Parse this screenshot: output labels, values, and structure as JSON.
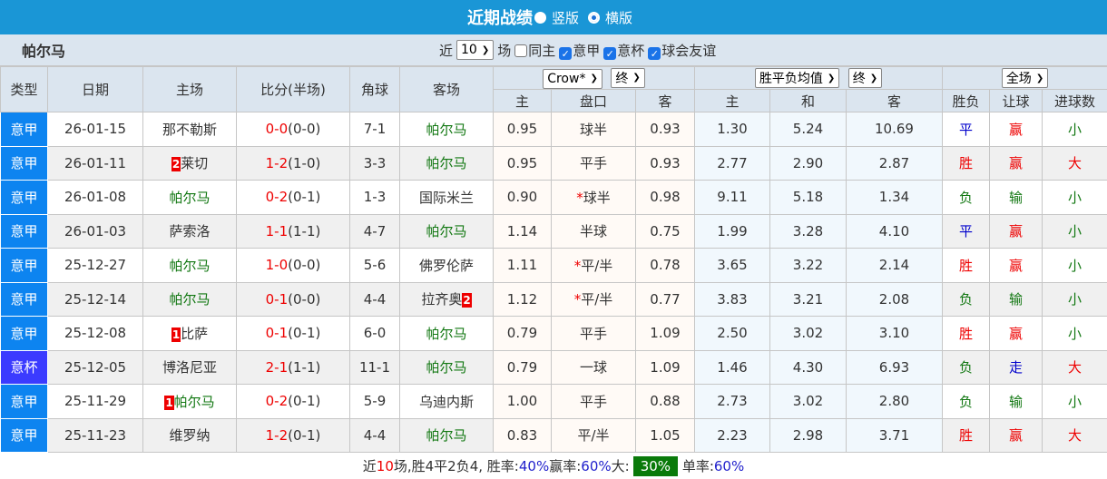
{
  "header": {
    "title": "近期战绩",
    "options": [
      {
        "label": "竖版",
        "selected": true
      },
      {
        "label": "横版",
        "selected": false
      }
    ]
  },
  "team": "帕尔马",
  "filters": {
    "prefix": "近",
    "count": "10",
    "suffix": "场",
    "checkboxes": [
      {
        "label": "同主",
        "checked": false
      },
      {
        "label": "意甲",
        "checked": true
      },
      {
        "label": "意杯",
        "checked": true
      },
      {
        "label": "球会友谊",
        "checked": true
      }
    ]
  },
  "columns": {
    "type": "类型",
    "date": "日期",
    "home": "主场",
    "score": "比分(半场)",
    "corner": "角球",
    "away": "客场",
    "result": "胜负",
    "handicap": "让球",
    "goals": "进球数"
  },
  "selects": {
    "company": "Crow*",
    "company_time": "终",
    "odds_type": "胜平负均值",
    "odds_time": "终",
    "period": "全场"
  },
  "sub": {
    "ah_home": "主",
    "ah_line": "盘口",
    "ah_away": "客",
    "eu_home": "主",
    "eu_draw": "和",
    "eu_away": "客"
  },
  "colors": {
    "accent": "#1a96d6",
    "league": "#0d84f0",
    "cup": "#3b3bff",
    "highlight_team": "#117711",
    "win": "#e00",
    "lose": "#117711",
    "draw": "#0000cc"
  },
  "rows": [
    {
      "type": "意甲",
      "date": "26-01-15",
      "home": "那不勒斯",
      "home_rank": "",
      "score": "0-0",
      "half": "(0-0)",
      "corner": "7-1",
      "away": "帕尔马",
      "away_rank": "",
      "ah": [
        "0.95",
        "球半",
        "0.93"
      ],
      "ah_star": false,
      "eu": [
        "1.30",
        "5.24",
        "10.69"
      ],
      "res": "平",
      "hc": "赢",
      "goals": "小"
    },
    {
      "type": "意甲",
      "date": "26-01-11",
      "home": "莱切",
      "home_rank": "2",
      "score": "1-2",
      "half": "(1-0)",
      "corner": "3-3",
      "away": "帕尔马",
      "away_rank": "",
      "ah": [
        "0.95",
        "平手",
        "0.93"
      ],
      "ah_star": false,
      "eu": [
        "2.77",
        "2.90",
        "2.87"
      ],
      "res": "胜",
      "hc": "赢",
      "goals": "大"
    },
    {
      "type": "意甲",
      "date": "26-01-08",
      "home": "帕尔马",
      "home_rank": "",
      "score": "0-2",
      "half": "(0-1)",
      "corner": "1-3",
      "away": "国际米兰",
      "away_rank": "",
      "ah": [
        "0.90",
        "球半",
        "0.98"
      ],
      "ah_star": true,
      "eu": [
        "9.11",
        "5.18",
        "1.34"
      ],
      "res": "负",
      "hc": "输",
      "goals": "小"
    },
    {
      "type": "意甲",
      "date": "26-01-03",
      "home": "萨索洛",
      "home_rank": "",
      "score": "1-1",
      "half": "(1-1)",
      "corner": "4-7",
      "away": "帕尔马",
      "away_rank": "",
      "ah": [
        "1.14",
        "半球",
        "0.75"
      ],
      "ah_star": false,
      "eu": [
        "1.99",
        "3.28",
        "4.10"
      ],
      "res": "平",
      "hc": "赢",
      "goals": "小"
    },
    {
      "type": "意甲",
      "date": "25-12-27",
      "home": "帕尔马",
      "home_rank": "",
      "score": "1-0",
      "half": "(0-0)",
      "corner": "5-6",
      "away": "佛罗伦萨",
      "away_rank": "",
      "ah": [
        "1.11",
        "平/半",
        "0.78"
      ],
      "ah_star": true,
      "eu": [
        "3.65",
        "3.22",
        "2.14"
      ],
      "res": "胜",
      "hc": "赢",
      "goals": "小"
    },
    {
      "type": "意甲",
      "date": "25-12-14",
      "home": "帕尔马",
      "home_rank": "",
      "score": "0-1",
      "half": "(0-0)",
      "corner": "4-4",
      "away": "拉齐奥",
      "away_rank": "2",
      "ah": [
        "1.12",
        "平/半",
        "0.77"
      ],
      "ah_star": true,
      "eu": [
        "3.83",
        "3.21",
        "2.08"
      ],
      "res": "负",
      "hc": "输",
      "goals": "小"
    },
    {
      "type": "意甲",
      "date": "25-12-08",
      "home": "比萨",
      "home_rank": "1",
      "score": "0-1",
      "half": "(0-1)",
      "corner": "6-0",
      "away": "帕尔马",
      "away_rank": "",
      "ah": [
        "0.79",
        "平手",
        "1.09"
      ],
      "ah_star": false,
      "eu": [
        "2.50",
        "3.02",
        "3.10"
      ],
      "res": "胜",
      "hc": "赢",
      "goals": "小"
    },
    {
      "type": "意杯",
      "date": "25-12-05",
      "home": "博洛尼亚",
      "home_rank": "",
      "score": "2-1",
      "half": "(1-1)",
      "corner": "11-1",
      "away": "帕尔马",
      "away_rank": "",
      "ah": [
        "0.79",
        "一球",
        "1.09"
      ],
      "ah_star": false,
      "eu": [
        "1.46",
        "4.30",
        "6.93"
      ],
      "res": "负",
      "hc": "走",
      "goals": "大"
    },
    {
      "type": "意甲",
      "date": "25-11-29",
      "home": "帕尔马",
      "home_rank": "1",
      "score": "0-2",
      "half": "(0-1)",
      "corner": "5-9",
      "away": "乌迪内斯",
      "away_rank": "",
      "ah": [
        "1.00",
        "平手",
        "0.88"
      ],
      "ah_star": false,
      "eu": [
        "2.73",
        "3.02",
        "2.80"
      ],
      "res": "负",
      "hc": "输",
      "goals": "小"
    },
    {
      "type": "意甲",
      "date": "25-11-23",
      "home": "维罗纳",
      "home_rank": "",
      "score": "1-2",
      "half": "(0-1)",
      "corner": "4-4",
      "away": "帕尔马",
      "away_rank": "",
      "ah": [
        "0.83",
        "平/半",
        "1.05"
      ],
      "ah_star": false,
      "eu": [
        "2.23",
        "2.98",
        "3.71"
      ],
      "res": "胜",
      "hc": "赢",
      "goals": "大"
    }
  ],
  "summary": {
    "t1": "近",
    "n": "10",
    "t2": "场,胜4平2负4, 胜率:",
    "win_rate": "40%",
    "t3": " 赢率:",
    "cover_rate": "60%",
    "t4": " 大:",
    "over_rate": "30%",
    "t5": " 单率:",
    "odd_rate": "60%"
  }
}
